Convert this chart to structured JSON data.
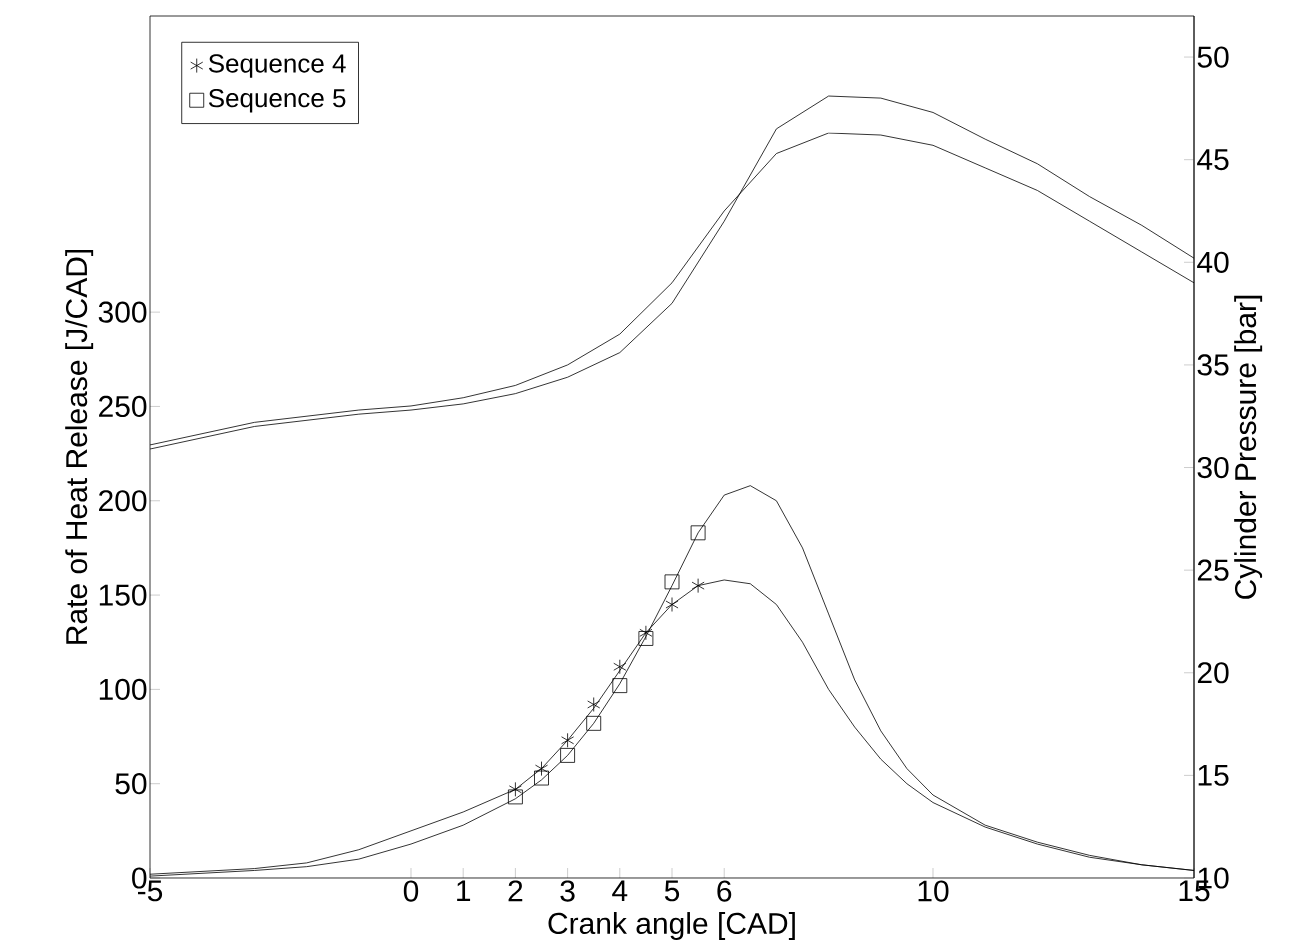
{
  "chart_data": {
    "type": "line",
    "xlabel": "Crank angle [CAD]",
    "ylabel": "Rate of Heat Release [J/CAD]",
    "y2label": "Cylinder Pressure [bar]",
    "xlim": [
      -5,
      15
    ],
    "xticks": [
      -5,
      0,
      1,
      2,
      3,
      4,
      5,
      6,
      10,
      15
    ],
    "ylim": [
      0,
      457
    ],
    "yticks": [
      0,
      50,
      100,
      150,
      200,
      250,
      300
    ],
    "y2lim": [
      10,
      52
    ],
    "y2ticks": [
      10,
      15,
      20,
      25,
      30,
      35,
      40,
      45,
      50
    ],
    "legend": "top left",
    "line_style": "solid",
    "series": [
      {
        "marker": "none",
        "color": "#000000",
        "x": [
          -5,
          -3,
          -2,
          -1,
          0,
          1,
          2,
          2.5,
          3,
          3.5,
          4,
          4.5,
          5,
          5.5,
          6,
          6.5,
          7,
          7.5,
          8,
          8.5,
          9,
          9.5,
          10,
          11,
          12,
          13,
          14,
          15
        ],
        "values": [
          2,
          5,
          8,
          15,
          25,
          35,
          47,
          58,
          73,
          90,
          110,
          130,
          145,
          155,
          158,
          156,
          145,
          125,
          100,
          80,
          63,
          50,
          40,
          27,
          18,
          11,
          7,
          4
        ]
      },
      {
        "marker": "none",
        "color": "#000000",
        "x": [
          -5,
          -3,
          -2,
          -1,
          0,
          1,
          2,
          2.5,
          3,
          3.5,
          4,
          4.5,
          5,
          5.5,
          6,
          6.5,
          7,
          7.5,
          8,
          8.5,
          9,
          9.5,
          10,
          11,
          12,
          13,
          14,
          15
        ],
        "values": [
          1,
          4,
          6,
          10,
          18,
          28,
          42,
          52,
          65,
          82,
          103,
          128,
          155,
          183,
          203,
          208,
          200,
          175,
          140,
          105,
          78,
          58,
          44,
          28,
          19,
          12,
          7,
          4
        ]
      },
      {
        "marker": "none",
        "color": "#000000",
        "axis": "y2",
        "x": [
          -5,
          -3,
          -1,
          0,
          1,
          2,
          3,
          4,
          5,
          6,
          7,
          8,
          9,
          10,
          11,
          12,
          13,
          14,
          15
        ],
        "values": [
          31.1,
          32.2,
          32.8,
          33.0,
          33.4,
          34.0,
          35.0,
          36.5,
          39.0,
          42.5,
          45.3,
          46.3,
          46.2,
          45.7,
          44.6,
          43.5,
          42.0,
          40.5,
          39.0
        ]
      },
      {
        "marker": "none",
        "color": "#000000",
        "axis": "y2",
        "x": [
          -5,
          -3,
          -1,
          0,
          1,
          2,
          3,
          4,
          5,
          6,
          7,
          8,
          9,
          10,
          11,
          12,
          13,
          14,
          15
        ],
        "values": [
          30.9,
          32.0,
          32.6,
          32.8,
          33.1,
          33.6,
          34.4,
          35.6,
          38.0,
          42.0,
          46.5,
          48.1,
          48.0,
          47.3,
          46.0,
          44.8,
          43.2,
          41.8,
          40.2
        ]
      },
      {
        "type": "scatter",
        "name": "Sequence 4",
        "marker": "cross",
        "color": "#000000",
        "x": [
          2,
          2.5,
          3,
          3.5,
          4,
          4.5,
          5,
          5.5
        ],
        "values": [
          47,
          58,
          73,
          92,
          112,
          130,
          145,
          155
        ]
      },
      {
        "type": "scatter",
        "name": "Sequence 5",
        "marker": "square",
        "color": "#000000",
        "x": [
          2,
          2.5,
          3,
          3.5,
          4,
          4.5,
          5,
          5.5
        ],
        "values": [
          43,
          53,
          65,
          82,
          102,
          127,
          157,
          183
        ]
      }
    ]
  }
}
